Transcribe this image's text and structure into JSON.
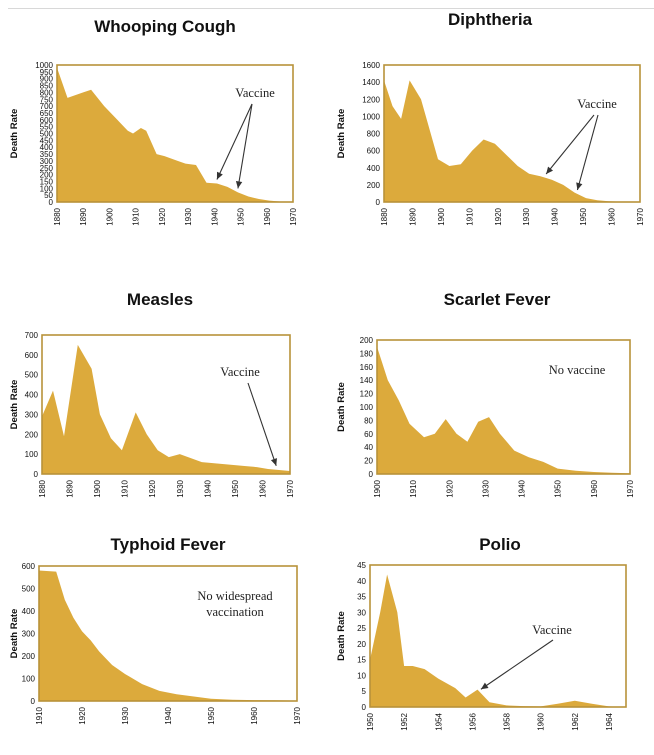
{
  "chart_data": [
    {
      "type": "area",
      "title": "Whooping Cough",
      "ylabel": "Death Rate",
      "xlim": [
        1880,
        1970
      ],
      "ylim": [
        0,
        1000
      ],
      "yticks": [
        0,
        50,
        100,
        150,
        200,
        250,
        300,
        350,
        400,
        450,
        500,
        550,
        600,
        650,
        700,
        750,
        800,
        850,
        900,
        950,
        1000
      ],
      "xticks": [
        1880,
        1890,
        1900,
        1910,
        1920,
        1930,
        1940,
        1950,
        1960,
        1970
      ],
      "x": [
        1880,
        1884,
        1890,
        1893,
        1898,
        1903,
        1907,
        1909,
        1912,
        1914,
        1918,
        1921,
        1926,
        1929,
        1933,
        1937,
        1941,
        1945,
        1949,
        1953,
        1957,
        1961,
        1965,
        1969
      ],
      "values": [
        980,
        760,
        800,
        820,
        700,
        600,
        520,
        500,
        540,
        520,
        350,
        335,
        300,
        280,
        270,
        140,
        135,
        110,
        70,
        40,
        22,
        10,
        4,
        1
      ],
      "annotations": [
        {
          "text": "Vaccine",
          "targets": [
            1941,
            1949
          ]
        }
      ]
    },
    {
      "type": "area",
      "title": "Diphtheria",
      "ylabel": "Death Rate",
      "xlim": [
        1880,
        1970
      ],
      "ylim": [
        0,
        1600
      ],
      "yticks": [
        0,
        200,
        400,
        600,
        800,
        1000,
        1200,
        1400,
        1600
      ],
      "xticks": [
        1880,
        1890,
        1900,
        1910,
        1920,
        1930,
        1940,
        1950,
        1960,
        1970
      ],
      "x": [
        1880,
        1883,
        1886,
        1889,
        1893,
        1896,
        1899,
        1903,
        1907,
        1911,
        1915,
        1919,
        1923,
        1927,
        1931,
        1935,
        1939,
        1943,
        1947,
        1951,
        1955,
        1959,
        1964,
        1969
      ],
      "values": [
        1420,
        1120,
        970,
        1420,
        1200,
        850,
        500,
        420,
        440,
        600,
        730,
        680,
        550,
        420,
        330,
        300,
        260,
        200,
        110,
        45,
        20,
        8,
        3,
        1
      ],
      "annotations": [
        {
          "text": "Vaccine",
          "targets": [
            1937,
            1948
          ]
        }
      ]
    },
    {
      "type": "area",
      "title": "Measles",
      "ylabel": "Death Rate",
      "xlim": [
        1880,
        1970
      ],
      "ylim": [
        0,
        700
      ],
      "yticks": [
        0,
        100,
        200,
        300,
        400,
        500,
        600,
        700
      ],
      "xticks": [
        1880,
        1890,
        1900,
        1910,
        1920,
        1930,
        1940,
        1950,
        1960,
        1970
      ],
      "x": [
        1880,
        1884,
        1888,
        1893,
        1898,
        1901,
        1905,
        1909,
        1914,
        1918,
        1922,
        1926,
        1930,
        1934,
        1938,
        1942,
        1946,
        1950,
        1954,
        1958,
        1962,
        1966,
        1970
      ],
      "values": [
        290,
        420,
        190,
        650,
        530,
        300,
        180,
        120,
        310,
        200,
        120,
        85,
        100,
        80,
        60,
        55,
        50,
        45,
        40,
        35,
        25,
        20,
        15
      ],
      "annotations": [
        {
          "text": "Vaccine",
          "targets": [
            1965
          ]
        }
      ]
    },
    {
      "type": "area",
      "title": "Scarlet Fever",
      "ylabel": "Death Rate",
      "xlim": [
        1900,
        1970
      ],
      "ylim": [
        0,
        200
      ],
      "yticks": [
        0,
        20,
        40,
        60,
        80,
        100,
        120,
        140,
        160,
        180,
        200
      ],
      "xticks": [
        1900,
        1910,
        1920,
        1930,
        1940,
        1950,
        1960,
        1970
      ],
      "x": [
        1900,
        1903,
        1906,
        1909,
        1913,
        1916,
        1919,
        1922,
        1925,
        1928,
        1931,
        1934,
        1938,
        1942,
        1946,
        1950,
        1955,
        1960,
        1965,
        1970
      ],
      "values": [
        190,
        140,
        110,
        75,
        55,
        60,
        82,
        60,
        48,
        78,
        85,
        60,
        35,
        25,
        18,
        8,
        5,
        3,
        2,
        1
      ],
      "annotations": [
        {
          "text": "No vaccine"
        }
      ]
    },
    {
      "type": "area",
      "title": "Typhoid Fever",
      "ylabel": "Death Rate",
      "xlim": [
        1910,
        1970
      ],
      "ylim": [
        0,
        600
      ],
      "yticks": [
        0,
        100,
        200,
        300,
        400,
        500,
        600
      ],
      "xticks": [
        1910,
        1920,
        1930,
        1940,
        1950,
        1960,
        1970
      ],
      "x": [
        1910,
        1914,
        1916,
        1918,
        1920,
        1922,
        1924,
        1927,
        1930,
        1934,
        1938,
        1942,
        1946,
        1950,
        1955,
        1960,
        1965,
        1970
      ],
      "values": [
        580,
        575,
        450,
        370,
        310,
        270,
        220,
        160,
        120,
        75,
        45,
        30,
        20,
        10,
        6,
        4,
        3,
        2
      ],
      "annotations": [
        {
          "text": "No widespread"
        },
        {
          "text": "vaccination"
        }
      ]
    },
    {
      "type": "area",
      "title": "Polio",
      "ylabel": "Death Rate",
      "xlim": [
        1950,
        1965
      ],
      "ylim": [
        0,
        45
      ],
      "yticks": [
        0,
        5,
        10,
        15,
        20,
        25,
        30,
        35,
        40,
        45
      ],
      "xticks": [
        1950,
        1952,
        1954,
        1956,
        1958,
        1960,
        1962,
        1964
      ],
      "x": [
        1950,
        1950.6,
        1951,
        1951.6,
        1952,
        1952.5,
        1953.2,
        1954,
        1955,
        1955.6,
        1956.3,
        1957,
        1958,
        1959,
        1960,
        1961,
        1962,
        1963,
        1964,
        1965
      ],
      "values": [
        15,
        30,
        42,
        30,
        13,
        13,
        12,
        9,
        6,
        3,
        5.5,
        1.5,
        0.5,
        0.3,
        0.2,
        1,
        2,
        1,
        0.2,
        0
      ],
      "annotations": [
        {
          "text": "Vaccine",
          "targets": [
            1956.5
          ]
        }
      ]
    }
  ]
}
